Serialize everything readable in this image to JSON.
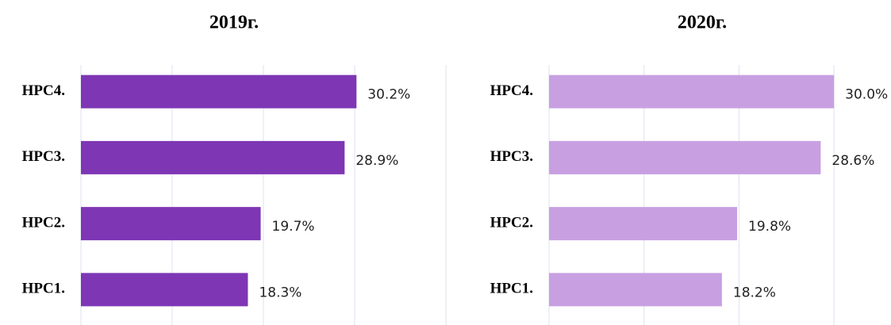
{
  "chart_data": [
    {
      "type": "bar",
      "orientation": "horizontal",
      "title": "2019г.",
      "categories": [
        "HPC1.",
        "HPC2.",
        "HPC3.",
        "HPC4."
      ],
      "values": [
        18.3,
        19.7,
        28.9,
        30.2
      ],
      "value_labels": [
        "18.3%",
        "19.7%",
        "28.9%",
        "30.2%"
      ],
      "color": "#7e36b5",
      "xlim": [
        0,
        40
      ],
      "xticks": [
        0,
        10,
        20,
        30,
        40
      ],
      "grid": true
    },
    {
      "type": "bar",
      "orientation": "horizontal",
      "title": "2020г.",
      "categories": [
        "HPC1.",
        "HPC2.",
        "HPC3.",
        "HPC4."
      ],
      "values": [
        18.2,
        19.8,
        28.6,
        30.0
      ],
      "value_labels": [
        "18.2%",
        "19.8%",
        "28.6%",
        "30.0%"
      ],
      "color": "#c8a0e2",
      "xlim": [
        0,
        36
      ],
      "xticks": [
        0,
        10,
        20,
        30
      ],
      "grid": true
    }
  ]
}
